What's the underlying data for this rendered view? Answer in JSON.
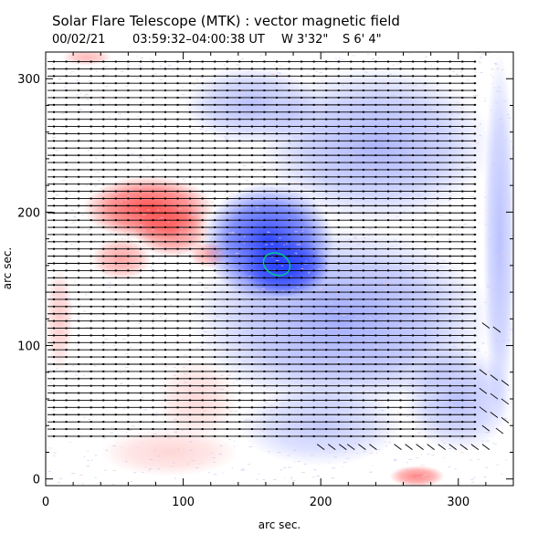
{
  "chart_data": {
    "type": "heatmap",
    "title": "Solar Flare Telescope (MTK) : vector magnetic field",
    "subtitle": {
      "date": "00/02/21",
      "time_range": "03:59:32–04:00:38 UT",
      "position_w": "W 3'32\"",
      "position_s": "S 6' 4\""
    },
    "xlabel": "arc sec.",
    "ylabel": "arc sec.",
    "xlim": [
      0,
      340
    ],
    "ylim": [
      -5,
      320
    ],
    "x_ticks": [
      0,
      100,
      200,
      300
    ],
    "y_ticks": [
      0,
      100,
      200,
      300
    ],
    "colormap": {
      "positive": "#ff3333",
      "negative": "#1a33ff",
      "neutral": "#ffffff"
    },
    "field_regions": [
      {
        "polarity": "positive",
        "cx": 75,
        "cy": 203,
        "rx": 48,
        "ry": 24,
        "peak": 0.85
      },
      {
        "polarity": "positive",
        "cx": 92,
        "cy": 186,
        "rx": 28,
        "ry": 20,
        "peak": 0.6
      },
      {
        "polarity": "positive",
        "cx": 55,
        "cy": 165,
        "rx": 22,
        "ry": 16,
        "peak": 0.45
      },
      {
        "polarity": "positive",
        "cx": 118,
        "cy": 168,
        "rx": 14,
        "ry": 10,
        "peak": 0.4
      },
      {
        "polarity": "positive",
        "cx": 270,
        "cy": 2,
        "rx": 20,
        "ry": 8,
        "peak": 0.6
      },
      {
        "polarity": "positive",
        "cx": 30,
        "cy": 316,
        "rx": 18,
        "ry": 6,
        "peak": 0.35
      },
      {
        "polarity": "positive",
        "cx": 10,
        "cy": 120,
        "rx": 10,
        "ry": 40,
        "peak": 0.25
      },
      {
        "polarity": "positive",
        "cx": 90,
        "cy": 20,
        "rx": 50,
        "ry": 18,
        "peak": 0.2
      },
      {
        "polarity": "positive",
        "cx": 110,
        "cy": 60,
        "rx": 30,
        "ry": 30,
        "peak": 0.18
      },
      {
        "polarity": "negative",
        "cx": 162,
        "cy": 178,
        "rx": 48,
        "ry": 44,
        "peak": 0.9
      },
      {
        "polarity": "negative",
        "cx": 175,
        "cy": 158,
        "rx": 32,
        "ry": 22,
        "peak": 0.8
      },
      {
        "polarity": "negative",
        "cx": 215,
        "cy": 120,
        "rx": 110,
        "ry": 70,
        "peak": 0.4
      },
      {
        "polarity": "negative",
        "cx": 240,
        "cy": 250,
        "rx": 85,
        "ry": 60,
        "peak": 0.35
      },
      {
        "polarity": "negative",
        "cx": 150,
        "cy": 280,
        "rx": 50,
        "ry": 30,
        "peak": 0.3
      },
      {
        "polarity": "negative",
        "cx": 300,
        "cy": 60,
        "rx": 40,
        "ry": 40,
        "peak": 0.3
      },
      {
        "polarity": "negative",
        "cx": 200,
        "cy": 40,
        "rx": 60,
        "ry": 30,
        "peak": 0.25
      },
      {
        "polarity": "negative",
        "cx": 330,
        "cy": 180,
        "rx": 12,
        "ry": 140,
        "peak": 0.3
      }
    ],
    "contour": {
      "color": "#00cc88",
      "cx": 168,
      "cy": 161,
      "rx": 10,
      "ry": 8
    },
    "vector_field": {
      "y_start": 32,
      "y_end": 313,
      "row_step": 5.4,
      "x_start": 0,
      "x_end": 313,
      "direction": "horizontal",
      "color": "#000000"
    },
    "diagonal_vectors": [
      {
        "x": 320,
        "y": 115
      },
      {
        "x": 328,
        "y": 112
      },
      {
        "x": 318,
        "y": 80
      },
      {
        "x": 326,
        "y": 76
      },
      {
        "x": 334,
        "y": 72
      },
      {
        "x": 318,
        "y": 66
      },
      {
        "x": 326,
        "y": 62
      },
      {
        "x": 334,
        "y": 58
      },
      {
        "x": 318,
        "y": 52
      },
      {
        "x": 326,
        "y": 48
      },
      {
        "x": 334,
        "y": 44
      },
      {
        "x": 320,
        "y": 38
      },
      {
        "x": 330,
        "y": 36
      },
      {
        "x": 200,
        "y": 24
      },
      {
        "x": 208,
        "y": 24
      },
      {
        "x": 216,
        "y": 24
      },
      {
        "x": 222,
        "y": 24
      },
      {
        "x": 230,
        "y": 24
      },
      {
        "x": 238,
        "y": 24
      },
      {
        "x": 256,
        "y": 24
      },
      {
        "x": 264,
        "y": 24
      },
      {
        "x": 272,
        "y": 24
      },
      {
        "x": 280,
        "y": 24
      },
      {
        "x": 288,
        "y": 24
      },
      {
        "x": 296,
        "y": 24
      },
      {
        "x": 304,
        "y": 24
      },
      {
        "x": 312,
        "y": 24
      },
      {
        "x": 320,
        "y": 24
      }
    ]
  }
}
